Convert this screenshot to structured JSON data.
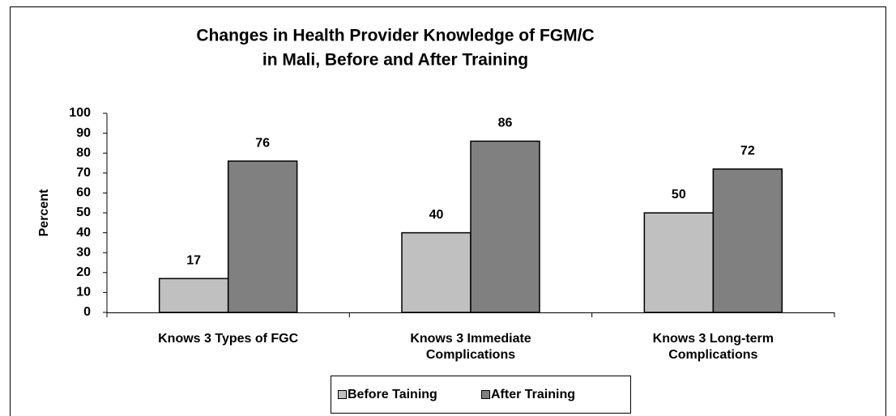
{
  "chart_data": {
    "type": "bar",
    "title": "Changes in Health Provider Knowledge of FGM/C",
    "subtitle": "in Mali, Before and After Training",
    "y_label": "Percent",
    "categories": [
      "Knows 3 Types of FGC",
      "Knows 3 Immediate Complications",
      "Knows 3 Long-term Complications"
    ],
    "series": [
      {
        "name": "Before Taining",
        "color": "#c0c0c0",
        "values": [
          17,
          40,
          50
        ]
      },
      {
        "name": "After Training",
        "color": "#808080",
        "values": [
          76,
          86,
          72
        ]
      }
    ],
    "ylim": [
      0,
      100
    ],
    "yticks": [
      0,
      10,
      20,
      30,
      40,
      50,
      60,
      70,
      80,
      90,
      100
    ],
    "grid": false,
    "legend": "bottom"
  }
}
